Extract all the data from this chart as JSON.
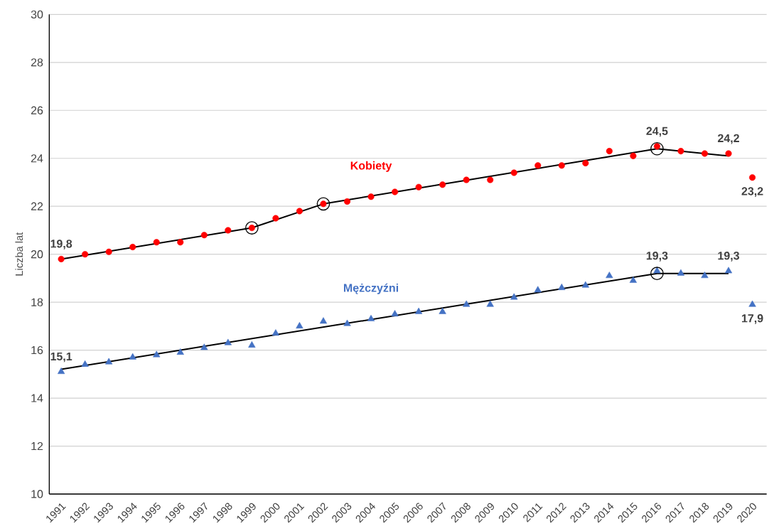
{
  "chart_data": {
    "type": "scatter",
    "ylabel": "Liczba lat",
    "x": [
      1991,
      1992,
      1993,
      1994,
      1995,
      1996,
      1997,
      1998,
      1999,
      2000,
      2001,
      2002,
      2003,
      2004,
      2005,
      2006,
      2007,
      2008,
      2009,
      2010,
      2011,
      2012,
      2013,
      2014,
      2015,
      2016,
      2017,
      2018,
      2019,
      2020
    ],
    "xlim": [
      1990.5,
      2020.6
    ],
    "xticks": [
      1991,
      1992,
      1993,
      1994,
      1995,
      1996,
      1997,
      1998,
      1999,
      2000,
      2001,
      2002,
      2003,
      2004,
      2005,
      2006,
      2007,
      2008,
      2009,
      2010,
      2011,
      2012,
      2013,
      2014,
      2015,
      2016,
      2017,
      2018,
      2019,
      2020
    ],
    "ylim": [
      10,
      30
    ],
    "yticks": [
      10,
      12,
      14,
      16,
      18,
      20,
      22,
      24,
      26,
      28,
      30
    ],
    "grid": "y",
    "series": [
      {
        "name": "Kobiety",
        "marker": "circle",
        "color": "#ff0000",
        "values": [
          19.8,
          20.0,
          20.1,
          20.3,
          20.5,
          20.5,
          20.8,
          21.0,
          21.1,
          21.5,
          21.8,
          22.1,
          22.2,
          22.4,
          22.6,
          22.8,
          22.9,
          23.1,
          23.1,
          23.4,
          23.7,
          23.7,
          23.8,
          24.3,
          24.1,
          24.5,
          24.3,
          24.2,
          24.2,
          23.2
        ],
        "value_labels": [
          "19,8",
          null,
          null,
          null,
          null,
          null,
          null,
          null,
          null,
          null,
          null,
          null,
          null,
          null,
          null,
          null,
          null,
          null,
          null,
          null,
          null,
          null,
          null,
          null,
          null,
          "24,5",
          null,
          null,
          "24,2",
          "23,2"
        ]
      },
      {
        "name": "Mężczyźni",
        "marker": "triangle",
        "color": "#4472c4",
        "values": [
          15.1,
          15.4,
          15.5,
          15.7,
          15.8,
          15.9,
          16.1,
          16.3,
          16.2,
          16.7,
          17.0,
          17.2,
          17.1,
          17.3,
          17.5,
          17.6,
          17.6,
          17.9,
          17.9,
          18.2,
          18.5,
          18.6,
          18.7,
          19.1,
          18.9,
          19.3,
          19.2,
          19.1,
          19.3,
          17.9
        ],
        "value_labels": [
          "15,1",
          null,
          null,
          null,
          null,
          null,
          null,
          null,
          null,
          null,
          null,
          null,
          null,
          null,
          null,
          null,
          null,
          null,
          null,
          null,
          null,
          null,
          null,
          null,
          null,
          "19,3",
          null,
          null,
          "19,3",
          "17,9"
        ]
      },
      {
        "type": "line",
        "marker": "none",
        "color": "#000000",
        "x": [
          1991,
          1999,
          2002,
          2016,
          2019
        ],
        "values": [
          19.8,
          21.1,
          22.1,
          24.4,
          24.1
        ]
      },
      {
        "type": "line",
        "marker": "none",
        "color": "#000000",
        "x": [
          1991,
          2016,
          2019
        ],
        "values": [
          15.2,
          19.2,
          19.2
        ]
      },
      {
        "marker": "circle",
        "color": "#000000",
        "x": [
          1999,
          2002,
          2016,
          2016
        ],
        "values": [
          21.1,
          22.1,
          24.4,
          19.2
        ]
      }
    ]
  }
}
